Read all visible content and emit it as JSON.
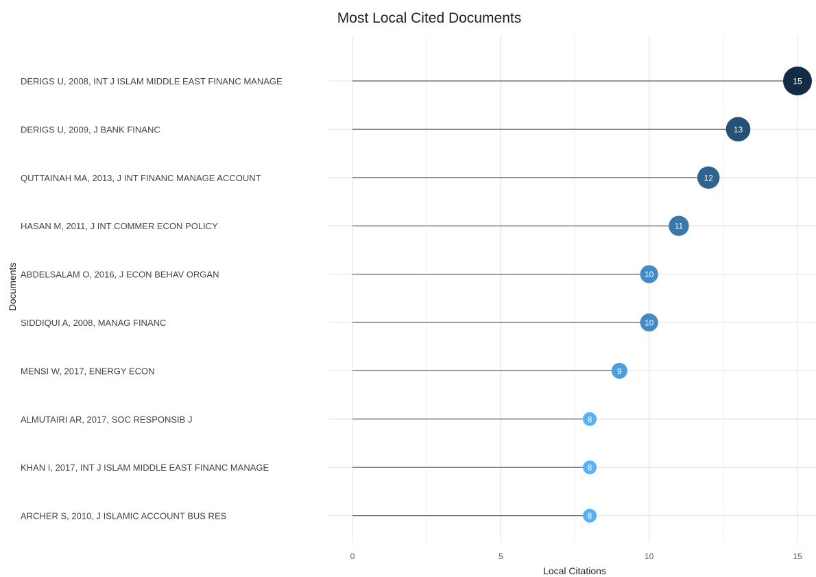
{
  "chart_data": {
    "type": "lollipop",
    "title": "Most Local Cited Documents",
    "xlabel": "Local Citations",
    "ylabel": "Documents",
    "xlim": [
      0,
      15
    ],
    "xticks": [
      0,
      5,
      10,
      15
    ],
    "grid": true,
    "legend": "none",
    "categories": [
      "DERIGS U, 2008, INT J ISLAM MIDDLE EAST FINANC MANAGE",
      "DERIGS U, 2009, J BANK FINANC",
      "QUTTAINAH MA, 2013, J INT FINANC MANAGE ACCOUNT",
      "HASAN M, 2011, J INT COMMER ECON POLICY",
      "ABDELSALAM O, 2016, J ECON BEHAV ORGAN",
      "SIDDIQUI A, 2008, MANAG FINANC",
      "MENSI W, 2017, ENERGY ECON",
      "ALMUTAIRI AR, 2017, SOC RESPONSIB J",
      "KHAN I, 2017, INT J ISLAM MIDDLE EAST FINANC MANAGE",
      "ARCHER S, 2010, J ISLAMIC ACCOUNT BUS RES"
    ],
    "values": [
      15,
      13,
      12,
      11,
      10,
      10,
      9,
      8,
      8,
      8
    ],
    "color_scale": {
      "low": "#56b1f7",
      "high": "#132b43"
    }
  }
}
